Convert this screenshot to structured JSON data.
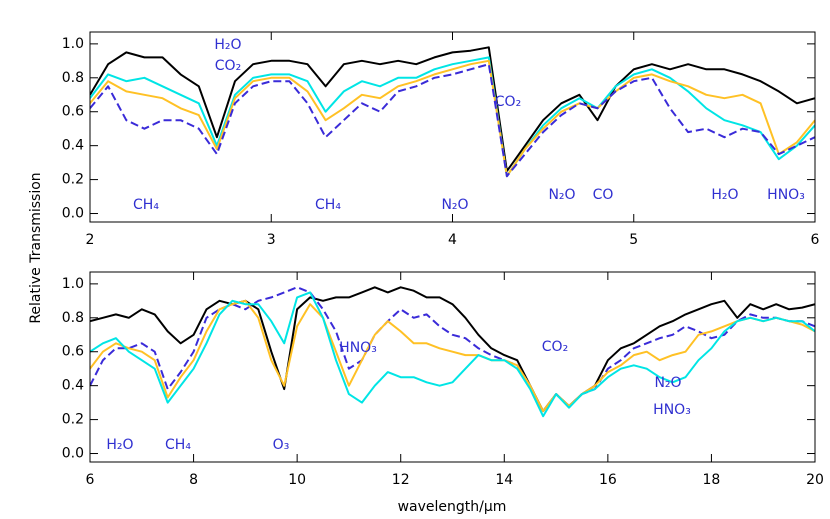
{
  "chart_data": [
    {
      "type": "line",
      "ylabel": "Relative Transmission",
      "x": [
        2.0,
        2.1,
        2.2,
        2.3,
        2.4,
        2.5,
        2.6,
        2.7,
        2.8,
        2.9,
        3.0,
        3.1,
        3.2,
        3.3,
        3.4,
        3.5,
        3.6,
        3.7,
        3.8,
        3.9,
        4.0,
        4.1,
        4.2,
        4.3,
        4.4,
        4.5,
        4.6,
        4.7,
        4.8,
        4.9,
        5.0,
        5.1,
        5.2,
        5.3,
        5.4,
        5.5,
        5.6,
        5.7,
        5.8,
        5.9,
        6.0
      ],
      "series": [
        {
          "color": "#000000",
          "values": [
            0.7,
            0.88,
            0.95,
            0.92,
            0.92,
            0.82,
            0.75,
            0.45,
            0.78,
            0.88,
            0.9,
            0.9,
            0.88,
            0.75,
            0.88,
            0.9,
            0.88,
            0.9,
            0.88,
            0.92,
            0.95,
            0.96,
            0.98,
            0.25,
            0.4,
            0.55,
            0.65,
            0.7,
            0.55,
            0.75,
            0.85,
            0.88,
            0.85,
            0.88,
            0.85,
            0.85,
            0.82,
            0.78,
            0.72,
            0.65,
            0.68
          ]
        },
        {
          "color": "#00e5e5",
          "values": [
            0.68,
            0.82,
            0.78,
            0.8,
            0.75,
            0.7,
            0.65,
            0.4,
            0.7,
            0.8,
            0.82,
            0.82,
            0.78,
            0.6,
            0.72,
            0.78,
            0.75,
            0.8,
            0.8,
            0.85,
            0.88,
            0.9,
            0.92,
            0.22,
            0.38,
            0.52,
            0.62,
            0.68,
            0.62,
            0.75,
            0.82,
            0.85,
            0.8,
            0.72,
            0.62,
            0.55,
            0.52,
            0.48,
            0.32,
            0.4,
            0.52
          ]
        },
        {
          "color": "#ffc125",
          "values": [
            0.65,
            0.78,
            0.72,
            0.7,
            0.68,
            0.62,
            0.58,
            0.38,
            0.68,
            0.78,
            0.8,
            0.8,
            0.72,
            0.55,
            0.62,
            0.7,
            0.68,
            0.75,
            0.78,
            0.82,
            0.85,
            0.88,
            0.9,
            0.22,
            0.38,
            0.5,
            0.6,
            0.65,
            0.62,
            0.72,
            0.8,
            0.82,
            0.78,
            0.75,
            0.7,
            0.68,
            0.7,
            0.65,
            0.35,
            0.42,
            0.55
          ]
        },
        {
          "color": "#3a2bd8",
          "dash": true,
          "values": [
            0.62,
            0.75,
            0.55,
            0.5,
            0.55,
            0.55,
            0.5,
            0.35,
            0.65,
            0.75,
            0.78,
            0.78,
            0.65,
            0.45,
            0.55,
            0.65,
            0.6,
            0.72,
            0.75,
            0.8,
            0.82,
            0.85,
            0.88,
            0.22,
            0.35,
            0.48,
            0.58,
            0.65,
            0.62,
            0.72,
            0.78,
            0.8,
            0.62,
            0.48,
            0.5,
            0.45,
            0.5,
            0.48,
            0.35,
            0.4,
            0.45
          ]
        }
      ],
      "xlim": [
        2,
        6
      ],
      "ylim": [
        -0.05,
        1.07
      ],
      "xticks": [
        2,
        3,
        4,
        5,
        6
      ],
      "yticks": [
        {
          "value": 0,
          "label": "0.0"
        },
        0.2,
        0.4,
        0.6,
        0.8,
        {
          "value": 1,
          "label": "1.0"
        }
      ],
      "annotations": [
        "H₂O",
        "CO₂",
        "CH₄",
        "CH₄",
        "N₂O",
        "CO₂",
        "N₂O",
        "CO",
        "H₂O",
        "HNO₃"
      ]
    },
    {
      "type": "line",
      "xlabel": "wavelength/μm",
      "x": [
        6,
        6.25,
        6.5,
        6.75,
        7,
        7.25,
        7.5,
        7.75,
        8,
        8.25,
        8.5,
        8.75,
        9,
        9.25,
        9.5,
        9.75,
        10,
        10.25,
        10.5,
        10.75,
        11,
        11.25,
        11.5,
        11.75,
        12,
        12.25,
        12.5,
        12.75,
        13,
        13.25,
        13.5,
        13.75,
        14,
        14.25,
        14.5,
        14.75,
        15,
        15.25,
        15.5,
        15.75,
        16,
        16.25,
        16.5,
        16.75,
        17,
        17.25,
        17.5,
        17.75,
        18,
        18.25,
        18.5,
        18.75,
        19,
        19.25,
        19.5,
        19.75,
        20
      ],
      "series": [
        {
          "color": "#000000",
          "values": [
            0.78,
            0.8,
            0.82,
            0.8,
            0.85,
            0.82,
            0.72,
            0.65,
            0.7,
            0.85,
            0.9,
            0.88,
            0.9,
            0.85,
            0.6,
            0.38,
            0.85,
            0.92,
            0.9,
            0.92,
            0.92,
            0.95,
            0.98,
            0.95,
            0.98,
            0.96,
            0.92,
            0.92,
            0.88,
            0.8,
            0.7,
            0.62,
            0.58,
            0.55,
            0.4,
            0.25,
            0.35,
            0.28,
            0.35,
            0.4,
            0.55,
            0.62,
            0.65,
            0.7,
            0.75,
            0.78,
            0.82,
            0.85,
            0.88,
            0.9,
            0.8,
            0.88,
            0.85,
            0.88,
            0.85,
            0.86,
            0.88
          ]
        },
        {
          "color": "#3a2bd8",
          "dash": true,
          "values": [
            0.4,
            0.55,
            0.62,
            0.62,
            0.65,
            0.6,
            0.38,
            0.48,
            0.6,
            0.8,
            0.85,
            0.88,
            0.85,
            0.9,
            0.92,
            0.95,
            0.98,
            0.95,
            0.85,
            0.72,
            0.5,
            0.55,
            0.7,
            0.78,
            0.85,
            0.8,
            0.82,
            0.75,
            0.7,
            0.68,
            0.62,
            0.58,
            0.55,
            0.52,
            0.4,
            0.25,
            0.35,
            0.28,
            0.35,
            0.38,
            0.5,
            0.55,
            0.62,
            0.65,
            0.68,
            0.7,
            0.75,
            0.72,
            0.68,
            0.7,
            0.78,
            0.82,
            0.8,
            0.8,
            0.78,
            0.78,
            0.75
          ]
        },
        {
          "color": "#ffc125",
          "values": [
            0.5,
            0.6,
            0.65,
            0.62,
            0.6,
            0.55,
            0.33,
            0.45,
            0.55,
            0.72,
            0.85,
            0.88,
            0.9,
            0.8,
            0.55,
            0.4,
            0.75,
            0.88,
            0.8,
            0.6,
            0.4,
            0.55,
            0.7,
            0.78,
            0.72,
            0.65,
            0.65,
            0.62,
            0.6,
            0.58,
            0.58,
            0.55,
            0.55,
            0.52,
            0.4,
            0.25,
            0.35,
            0.28,
            0.35,
            0.4,
            0.48,
            0.52,
            0.58,
            0.6,
            0.55,
            0.58,
            0.6,
            0.7,
            0.72,
            0.75,
            0.78,
            0.8,
            0.78,
            0.8,
            0.78,
            0.76,
            0.72
          ]
        },
        {
          "color": "#00e5e5",
          "values": [
            0.6,
            0.65,
            0.68,
            0.6,
            0.55,
            0.5,
            0.3,
            0.4,
            0.5,
            0.65,
            0.82,
            0.9,
            0.88,
            0.88,
            0.78,
            0.65,
            0.92,
            0.95,
            0.8,
            0.55,
            0.35,
            0.3,
            0.4,
            0.48,
            0.45,
            0.45,
            0.42,
            0.4,
            0.42,
            0.5,
            0.58,
            0.55,
            0.55,
            0.5,
            0.38,
            0.22,
            0.35,
            0.27,
            0.35,
            0.38,
            0.45,
            0.5,
            0.52,
            0.5,
            0.45,
            0.42,
            0.45,
            0.55,
            0.62,
            0.72,
            0.78,
            0.8,
            0.78,
            0.8,
            0.78,
            0.78,
            0.72
          ]
        }
      ],
      "xlim": [
        6,
        20
      ],
      "ylim": [
        -0.05,
        1.07
      ],
      "xticks": [
        6,
        8,
        10,
        12,
        14,
        16,
        18,
        20
      ],
      "yticks": [
        {
          "value": 0,
          "label": "0.0"
        },
        0.2,
        0.4,
        0.6,
        0.8,
        {
          "value": 1,
          "label": "1.0"
        }
      ],
      "annotations": [
        "HNO₃",
        "CO₂",
        "N₂O",
        "HNO₃",
        "H₂O",
        "CH₄",
        "O₃"
      ]
    }
  ]
}
